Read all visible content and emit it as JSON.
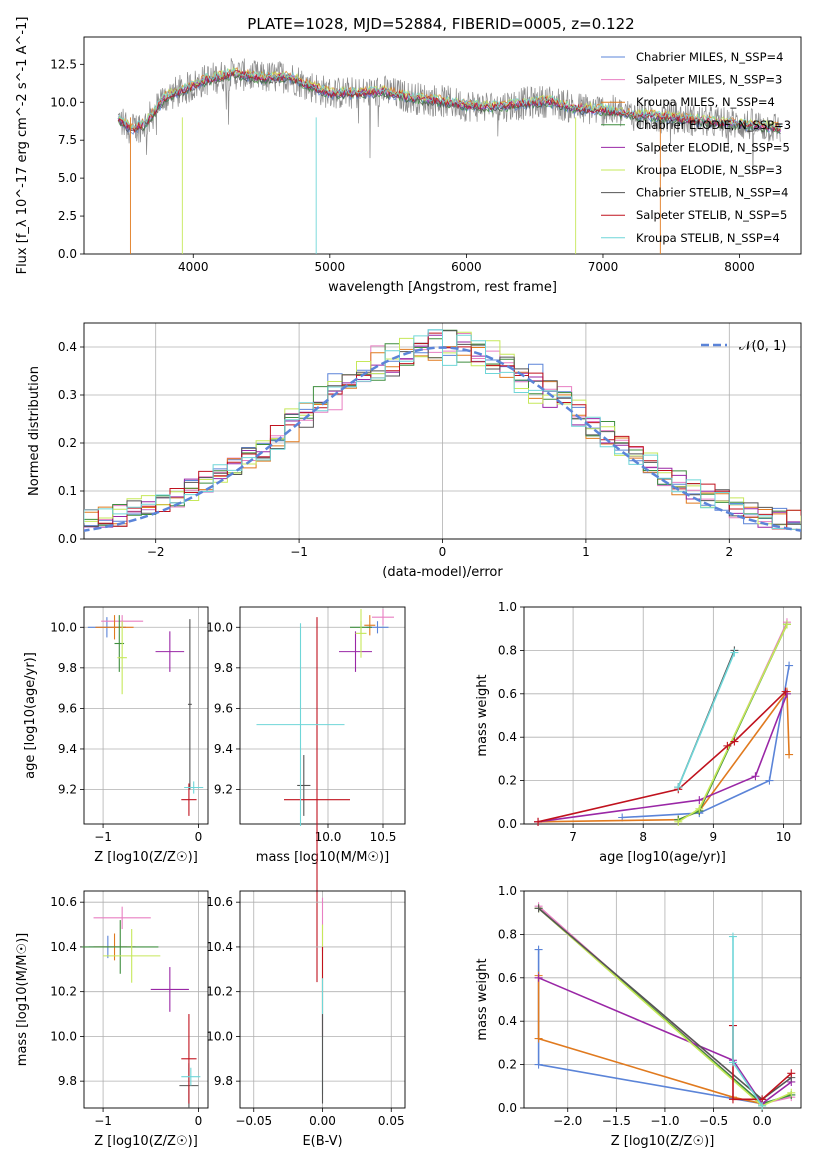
{
  "figure": {
    "title": "PLATE=1028, MJD=52884, FIBERID=0005, z=0.122"
  },
  "colors": {
    "chabrier_miles": "#5b84d8",
    "salpeter_miles": "#e87fc2",
    "kroupa_miles": "#e07a1f",
    "chabrier_elodie": "#3e8e3e",
    "salpeter_elodie": "#9a27a6",
    "kroupa_elodie": "#c6e85a",
    "chabrier_stelib": "#555555",
    "salpeter_stelib": "#c0121e",
    "kroupa_stelib": "#6fd6d8",
    "gaussian": "#5b84d8",
    "grid": "#b0b0b0"
  },
  "chart_data": [
    {
      "id": "spectrum",
      "type": "line",
      "title": "PLATE=1028, MJD=52884, FIBERID=0005, z=0.122",
      "xlabel": "wavelength [Angstrom, rest frame]",
      "ylabel": "Flux [f_λ 10^-17 erg cm^-2 s^-1 A^-1]",
      "xlim": [
        3200,
        8450
      ],
      "ylim": [
        0,
        14.3
      ],
      "xticks": [
        "4000",
        "5000",
        "6000",
        "7000",
        "8000"
      ],
      "yticks": [
        "0.0",
        "2.5",
        "5.0",
        "7.5",
        "10.0",
        "12.5"
      ],
      "grid": false,
      "legend_position": "top-right",
      "legend": [
        "Chabrier MILES, N_SSP=4",
        "Salpeter MILES, N_SSP=3",
        "Kroupa MILES, N_SSP=4",
        "Chabrier ELODIE, N_SSP=3",
        "Salpeter ELODIE, N_SSP=5",
        "Kroupa ELODIE, N_SSP=3",
        "Chabrier STELIB, N_SSP=4",
        "Salpeter STELIB, N_SSP=5",
        "Kroupa STELIB, N_SSP=4"
      ],
      "data_series": {
        "x": [
          3450,
          3550,
          3650,
          3800,
          3950,
          4100,
          4300,
          4500,
          4700,
          4850,
          5000,
          5200,
          5400,
          5600,
          5800,
          6000,
          6200,
          6400,
          6600,
          6800,
          7000,
          7200,
          7500,
          7800,
          8100,
          8300
        ],
        "y": [
          8.9,
          8.2,
          8.6,
          10.4,
          10.9,
          11.5,
          11.9,
          11.6,
          11.7,
          11.1,
          10.6,
          10.6,
          10.7,
          10.3,
          10.1,
          9.8,
          9.7,
          9.9,
          10.1,
          9.6,
          9.5,
          9.2,
          9.0,
          8.7,
          8.5,
          8.3
        ]
      }
    },
    {
      "id": "residuals",
      "type": "line",
      "xlabel": "(data-model)/error",
      "ylabel": "Normed distribution",
      "xlim": [
        -2.5,
        2.5
      ],
      "ylim": [
        0,
        0.45
      ],
      "xticks": [
        "−2",
        "−1",
        "0",
        "1",
        "2"
      ],
      "yticks": [
        "0.0",
        "0.1",
        "0.2",
        "0.3",
        "0.4"
      ],
      "grid": true,
      "legend_position": "top-right",
      "legend": [
        "𝒩(0, 1)"
      ]
    },
    {
      "id": "age_vs_Z",
      "type": "scatter",
      "xlabel": "Z [log10(Z/Z☉)]",
      "ylabel": "age  [log10(age/yr)]",
      "xlim": [
        -1.2,
        0.1
      ],
      "ylim": [
        9.03,
        10.1
      ],
      "xticks": [
        "−1",
        "0"
      ],
      "yticks": [
        "9.2",
        "9.4",
        "9.6",
        "9.8",
        "10.0"
      ],
      "grid": true,
      "points": [
        {
          "x": -0.96,
          "y": 10.0,
          "xerr": 0.2,
          "yerr": 0.05,
          "c": "chabrier_miles"
        },
        {
          "x": -0.8,
          "y": 10.03,
          "xerr": 0.22,
          "yerr": 0.03,
          "c": "salpeter_miles"
        },
        {
          "x": -0.88,
          "y": 10.0,
          "xerr": 0.2,
          "yerr": 0.06,
          "c": "kroupa_miles"
        },
        {
          "x": -0.83,
          "y": 9.92,
          "xerr": 0.05,
          "yerr": 0.14,
          "c": "chabrier_elodie"
        },
        {
          "x": -0.3,
          "y": 9.88,
          "xerr": 0.15,
          "yerr": 0.1,
          "c": "salpeter_elodie"
        },
        {
          "x": -0.8,
          "y": 9.85,
          "xerr": 0.05,
          "yerr": 0.18,
          "c": "kroupa_elodie"
        },
        {
          "x": -0.09,
          "y": 9.62,
          "xerr": 0.02,
          "yerr": 0.42,
          "c": "chabrier_stelib"
        },
        {
          "x": -0.1,
          "y": 9.15,
          "xerr": 0.08,
          "yerr": 0.08,
          "c": "salpeter_stelib"
        },
        {
          "x": -0.05,
          "y": 9.21,
          "xerr": 0.1,
          "yerr": 0.03,
          "c": "kroupa_stelib"
        }
      ]
    },
    {
      "id": "age_vs_mass",
      "type": "scatter",
      "xlabel": "mass [log10(M/M☉)]",
      "ylabel": "",
      "xlim": [
        9.2,
        10.7
      ],
      "ylim": [
        9.03,
        10.1
      ],
      "xticks": [
        "10.0",
        "10.5"
      ],
      "yticks": [
        "9.2",
        "9.4",
        "9.6",
        "9.8",
        "10.0"
      ],
      "grid": true,
      "points": [
        {
          "x": 10.45,
          "y": 10.0,
          "xerr": 0.1,
          "yerr": 0.03,
          "c": "chabrier_miles"
        },
        {
          "x": 10.5,
          "y": 10.05,
          "xerr": 0.1,
          "yerr": 0.04,
          "c": "salpeter_miles"
        },
        {
          "x": 10.38,
          "y": 10.01,
          "xerr": 0.05,
          "yerr": 0.05,
          "c": "kroupa_miles"
        },
        {
          "x": 10.3,
          "y": 10.0,
          "xerr": 0.1,
          "yerr": 0.03,
          "c": "chabrier_elodie"
        },
        {
          "x": 10.25,
          "y": 9.88,
          "xerr": 0.15,
          "yerr": 0.1,
          "c": "salpeter_elodie"
        },
        {
          "x": 10.3,
          "y": 9.97,
          "xerr": 0.05,
          "yerr": 0.12,
          "c": "kroupa_elodie"
        },
        {
          "x": 9.78,
          "y": 9.22,
          "xerr": 0.06,
          "yerr": 0.15,
          "c": "chabrier_stelib"
        },
        {
          "x": 9.9,
          "y": 9.15,
          "xerr": 0.3,
          "yerr": 0.9,
          "c": "salpeter_stelib"
        },
        {
          "x": 9.75,
          "y": 9.52,
          "xerr": 0.4,
          "yerr": 0.5,
          "c": "kroupa_stelib"
        }
      ]
    },
    {
      "id": "mass_weight_vs_age",
      "type": "line",
      "xlabel": "age  [log10(age/yr)]",
      "ylabel": "mass weight",
      "xlim": [
        6.3,
        10.25
      ],
      "ylim": [
        0,
        1.0
      ],
      "xticks": [
        "7",
        "8",
        "9",
        "10"
      ],
      "yticks": [
        "0.0",
        "0.2",
        "0.4",
        "0.6",
        "0.8",
        "1.0"
      ],
      "grid": true,
      "series": [
        {
          "c": "chabrier_miles",
          "x": [
            7.7,
            8.8,
            9.8,
            10.08
          ],
          "y": [
            0.03,
            0.05,
            0.2,
            0.73
          ]
        },
        {
          "c": "salpeter_miles",
          "x": [
            8.5,
            8.8,
            10.05
          ],
          "y": [
            0.02,
            0.06,
            0.93
          ]
        },
        {
          "c": "kroupa_miles",
          "x": [
            6.5,
            8.5,
            8.8,
            10.05,
            10.08
          ],
          "y": [
            0.01,
            0.02,
            0.06,
            0.61,
            0.32
          ]
        },
        {
          "c": "chabrier_elodie",
          "x": [
            8.5,
            8.8,
            10.05
          ],
          "y": [
            0.02,
            0.06,
            0.92
          ]
        },
        {
          "c": "salpeter_elodie",
          "x": [
            6.5,
            8.8,
            9.6,
            10.05
          ],
          "y": [
            0.01,
            0.11,
            0.22,
            0.6
          ]
        },
        {
          "c": "kroupa_elodie",
          "x": [
            8.5,
            8.8,
            10.05
          ],
          "y": [
            0.01,
            0.07,
            0.92
          ]
        },
        {
          "c": "chabrier_stelib",
          "x": [
            8.5,
            9.3
          ],
          "y": [
            0.17,
            0.8
          ]
        },
        {
          "c": "salpeter_stelib",
          "x": [
            6.5,
            8.5,
            9.2,
            9.3,
            10.03
          ],
          "y": [
            0.01,
            0.16,
            0.36,
            0.38,
            0.61
          ]
        },
        {
          "c": "kroupa_stelib",
          "x": [
            8.5,
            9.3
          ],
          "y": [
            0.17,
            0.79
          ]
        }
      ]
    },
    {
      "id": "mass_vs_Z",
      "type": "scatter",
      "xlabel": "Z [log10(Z/Z☉)]",
      "ylabel": "mass [log10(M/M☉)]",
      "xlim": [
        -1.2,
        0.1
      ],
      "ylim": [
        9.68,
        10.65
      ],
      "xticks": [
        "−1",
        "0"
      ],
      "yticks": [
        "9.8",
        "10.0",
        "10.2",
        "10.4",
        "10.6"
      ],
      "grid": true,
      "points": [
        {
          "x": -0.95,
          "y": 10.4,
          "xerr": 0.2,
          "yerr": 0.05,
          "c": "chabrier_miles"
        },
        {
          "x": -0.8,
          "y": 10.53,
          "xerr": 0.3,
          "yerr": 0.05,
          "c": "salpeter_miles"
        },
        {
          "x": -0.88,
          "y": 10.4,
          "xerr": 0.22,
          "yerr": 0.06,
          "c": "kroupa_miles"
        },
        {
          "x": -0.82,
          "y": 10.4,
          "xerr": 0.4,
          "yerr": 0.12,
          "c": "chabrier_elodie"
        },
        {
          "x": -0.3,
          "y": 10.21,
          "xerr": 0.2,
          "yerr": 0.1,
          "c": "salpeter_elodie"
        },
        {
          "x": -0.7,
          "y": 10.36,
          "xerr": 0.3,
          "yerr": 0.12,
          "c": "kroupa_elodie"
        },
        {
          "x": -0.1,
          "y": 9.78,
          "xerr": 0.1,
          "yerr": 0.1,
          "c": "chabrier_stelib"
        },
        {
          "x": -0.1,
          "y": 9.9,
          "xerr": 0.08,
          "yerr": 0.2,
          "c": "salpeter_stelib"
        },
        {
          "x": -0.08,
          "y": 9.82,
          "xerr": 0.1,
          "yerr": 0.04,
          "c": "kroupa_stelib"
        }
      ]
    },
    {
      "id": "mass_vs_ebv",
      "type": "scatter",
      "xlabel": "E(B-V)",
      "ylabel": "",
      "xlim": [
        -0.06,
        0.06
      ],
      "ylim": [
        9.68,
        10.65
      ],
      "xticks": [
        "−0.05",
        "0.00",
        "0.05"
      ],
      "yticks": [
        "9.8",
        "10.0",
        "10.2",
        "10.4",
        "10.6"
      ],
      "grid": true,
      "points": [
        {
          "x": 0.0,
          "y": 10.5,
          "xerr": 0,
          "yerr": 0.12,
          "c": "salpeter_miles"
        },
        {
          "x": 0.0,
          "y": 10.3,
          "xerr": 0,
          "yerr": 0.2,
          "c": "kroupa_elodie"
        },
        {
          "x": 0.0,
          "y": 10.2,
          "xerr": 0,
          "yerr": 0.2,
          "c": "salpeter_stelib"
        },
        {
          "x": 0.0,
          "y": 10.0,
          "xerr": 0,
          "yerr": 0.26,
          "c": "kroupa_stelib"
        },
        {
          "x": 0.0,
          "y": 9.9,
          "xerr": 0,
          "yerr": 0.2,
          "c": "chabrier_stelib"
        }
      ]
    },
    {
      "id": "mass_weight_vs_Z",
      "type": "line",
      "xlabel": "Z [log10(Z/Z☉)]",
      "ylabel": "mass weight",
      "xlim": [
        -2.45,
        0.4
      ],
      "ylim": [
        0,
        1.0
      ],
      "xticks": [
        "−2.0",
        "−1.5",
        "−1.0",
        "−0.5",
        "0.0"
      ],
      "yticks": [
        "0.0",
        "0.2",
        "0.4",
        "0.6",
        "0.8",
        "1.0"
      ],
      "grid": true,
      "series": [
        {
          "c": "chabrier_miles",
          "x": [
            -2.3,
            -2.3,
            0.0,
            0.3
          ],
          "y": [
            0.73,
            0.2,
            0.02,
            0.06
          ]
        },
        {
          "c": "salpeter_miles",
          "x": [
            -2.3,
            0.0,
            0.3
          ],
          "y": [
            0.93,
            0.02,
            0.05
          ]
        },
        {
          "c": "kroupa_miles",
          "x": [
            -2.3,
            -2.3,
            -0.3,
            0.0
          ],
          "y": [
            0.61,
            0.32,
            0.05,
            0.02
          ]
        },
        {
          "c": "chabrier_elodie",
          "x": [
            -2.3,
            0.0,
            0.3
          ],
          "y": [
            0.92,
            0.02,
            0.06
          ]
        },
        {
          "c": "salpeter_elodie",
          "x": [
            -2.3,
            -0.3,
            0.0,
            0.3
          ],
          "y": [
            0.6,
            0.22,
            0.02,
            0.12
          ]
        },
        {
          "c": "kroupa_elodie",
          "x": [
            -2.3,
            0.0,
            0.3
          ],
          "y": [
            0.92,
            0.01,
            0.07
          ]
        },
        {
          "c": "chabrier_stelib",
          "x": [
            -2.3,
            0.0,
            0.3
          ],
          "y": [
            0.92,
            0.04,
            0.14
          ]
        },
        {
          "c": "salpeter_stelib",
          "x": [
            -0.3,
            -0.3,
            0.0,
            0.3
          ],
          "y": [
            0.38,
            0.04,
            0.04,
            0.16
          ]
        },
        {
          "c": "kroupa_stelib",
          "x": [
            -0.3,
            -0.3,
            0.0
          ],
          "y": [
            0.79,
            0.21,
            0.01
          ]
        }
      ]
    }
  ]
}
